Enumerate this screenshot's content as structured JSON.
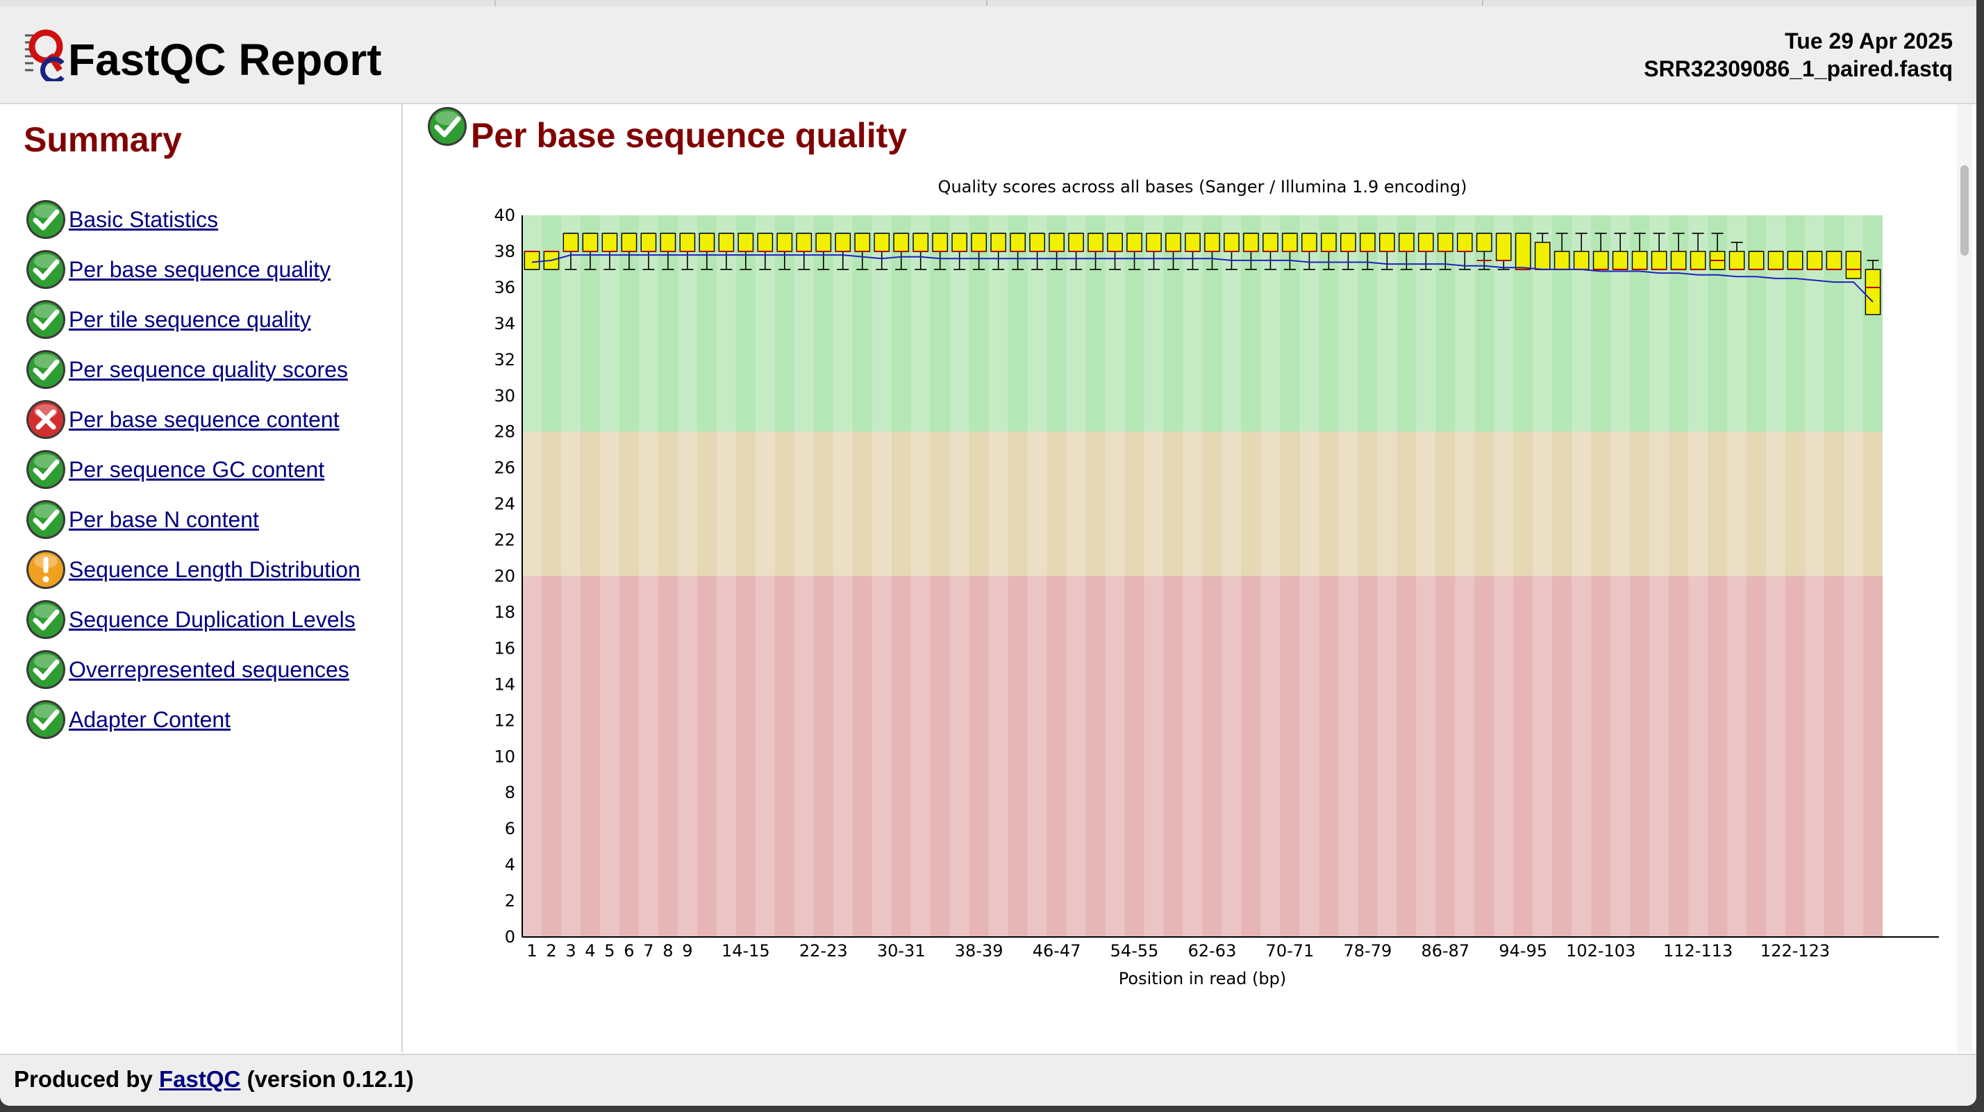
{
  "header": {
    "title": "FastQC Report",
    "date": "Tue 29 Apr 2025",
    "filename": "SRR32309086_1_paired.fastq"
  },
  "summary": {
    "title": "Summary",
    "modules": [
      {
        "label": "Basic Statistics",
        "status": "pass"
      },
      {
        "label": "Per base sequence quality",
        "status": "pass"
      },
      {
        "label": "Per tile sequence quality",
        "status": "pass"
      },
      {
        "label": "Per sequence quality scores",
        "status": "pass"
      },
      {
        "label": "Per base sequence content",
        "status": "fail"
      },
      {
        "label": "Per sequence GC content",
        "status": "pass"
      },
      {
        "label": "Per base N content",
        "status": "pass"
      },
      {
        "label": "Sequence Length Distribution",
        "status": "warn"
      },
      {
        "label": "Sequence Duplication Levels",
        "status": "pass"
      },
      {
        "label": "Overrepresented sequences",
        "status": "pass"
      },
      {
        "label": "Adapter Content",
        "status": "pass"
      }
    ]
  },
  "section": {
    "title": "Per base sequence quality",
    "status": "pass"
  },
  "footer": {
    "prefix": "Produced by ",
    "link": "FastQC",
    "suffix": " (version 0.12.1)"
  },
  "colors": {
    "pass": "#2e9e32",
    "fail": "#d32f2f",
    "warn": "#f0a020",
    "heading": "#800000",
    "link": "#000080",
    "box": "#f0f000",
    "mean": "#2020c0",
    "zone_good": "#b5e6b5",
    "zone_warn": "#e6d7b5",
    "zone_bad": "#e6b5b5"
  },
  "chart_data": {
    "type": "box",
    "title": "Quality scores across all bases (Sanger / Illumina 1.9 encoding)",
    "xlabel": "Position in read (bp)",
    "ylim": [
      0,
      40
    ],
    "yticks": [
      0,
      2,
      4,
      6,
      8,
      10,
      12,
      14,
      16,
      18,
      20,
      22,
      24,
      26,
      28,
      30,
      32,
      34,
      36,
      38,
      40
    ],
    "zones": [
      {
        "name": "good",
        "from": 28,
        "to": 40
      },
      {
        "name": "warn",
        "from": 20,
        "to": 28
      },
      {
        "name": "bad",
        "from": 0,
        "to": 20
      }
    ],
    "categories": [
      "1",
      "2",
      "3",
      "4",
      "5",
      "6",
      "7",
      "8",
      "9",
      "10-11",
      "12-13",
      "14-15",
      "16-17",
      "18-19",
      "20-21",
      "22-23",
      "24-25",
      "26-27",
      "28-29",
      "30-31",
      "32-33",
      "34-35",
      "36-37",
      "38-39",
      "40-41",
      "42-43",
      "44-45",
      "46-47",
      "48-49",
      "50-51",
      "52-53",
      "54-55",
      "56-57",
      "58-59",
      "60-61",
      "62-63",
      "64-65",
      "66-67",
      "68-69",
      "70-71",
      "72-73",
      "74-75",
      "76-77",
      "78-79",
      "80-81",
      "82-83",
      "84-85",
      "86-87",
      "88-89",
      "90-91",
      "92-93",
      "94-95",
      "96-97",
      "98-99",
      "100-101",
      "102-103",
      "104-105",
      "106-107",
      "108-109",
      "110-111",
      "112-113",
      "114-115",
      "116-117",
      "118-119",
      "120-121",
      "122-123",
      "124-125",
      "126-127",
      "128-129",
      "130-131"
    ],
    "xtick_labels": [
      "1",
      "2",
      "3",
      "4",
      "5",
      "6",
      "7",
      "8",
      "9",
      "14-15",
      "22-23",
      "30-31",
      "38-39",
      "46-47",
      "54-55",
      "62-63",
      "70-71",
      "78-79",
      "86-87",
      "94-95",
      "102-103",
      "112-113",
      "122-123"
    ],
    "series": {
      "upper_quartile": [
        38,
        38,
        39,
        39,
        39,
        39,
        39,
        39,
        39,
        39,
        39,
        39,
        39,
        39,
        39,
        39,
        39,
        39,
        39,
        39,
        39,
        39,
        39,
        39,
        39,
        39,
        39,
        39,
        39,
        39,
        39,
        39,
        39,
        39,
        39,
        39,
        39,
        39,
        39,
        39,
        39,
        39,
        39,
        39,
        39,
        39,
        39,
        39,
        39,
        39,
        39,
        39,
        38.5,
        38,
        38,
        38,
        38,
        38,
        38,
        38,
        38,
        38,
        38,
        38,
        38,
        38,
        38,
        38,
        38,
        37
      ],
      "median": [
        38,
        38,
        38,
        38,
        38,
        38,
        38,
        38,
        38,
        38,
        38,
        38,
        38,
        38,
        38,
        38,
        38,
        38,
        38,
        38,
        38,
        38,
        38,
        38,
        38,
        38,
        38,
        38,
        38,
        38,
        38,
        38,
        38,
        38,
        38,
        38,
        38,
        38,
        38,
        38,
        38,
        38,
        38,
        38,
        38,
        38,
        38,
        38,
        38,
        37.5,
        37.5,
        37,
        37,
        37,
        37,
        37,
        37,
        37,
        37,
        37,
        37,
        37.5,
        37,
        37,
        37,
        37,
        37,
        37,
        37,
        36
      ],
      "lower_quartile": [
        37,
        37,
        38,
        38,
        38,
        38,
        38,
        38,
        38,
        38,
        38,
        38,
        38,
        38,
        38,
        38,
        38,
        38,
        38,
        38,
        38,
        38,
        38,
        38,
        38,
        38,
        38,
        38,
        38,
        38,
        38,
        38,
        38,
        38,
        38,
        38,
        38,
        38,
        38,
        38,
        38,
        38,
        38,
        38,
        38,
        38,
        38,
        38,
        38,
        38,
        37.5,
        37,
        37,
        37,
        37,
        37,
        37,
        37,
        37,
        37,
        37,
        37,
        37,
        37,
        37,
        37,
        37,
        37,
        36.5,
        34.5
      ],
      "whisker_high": [
        38,
        38,
        39,
        39,
        39,
        39,
        39,
        39,
        39,
        39,
        39,
        39,
        39,
        39,
        39,
        39,
        39,
        39,
        39,
        39,
        39,
        39,
        39,
        39,
        39,
        39,
        39,
        39,
        39,
        39,
        39,
        39,
        39,
        39,
        39,
        39,
        39,
        39,
        39,
        39,
        39,
        39,
        39,
        39,
        39,
        39,
        39,
        39,
        39,
        39,
        39,
        39,
        39,
        39,
        39,
        39,
        39,
        39,
        39,
        39,
        39,
        39,
        38.5,
        38,
        38,
        38,
        38,
        38,
        38,
        37.5
      ],
      "whisker_low": [
        37,
        37,
        37,
        37,
        37,
        37,
        37,
        37,
        37,
        37,
        37,
        37,
        37,
        37,
        37,
        37,
        37,
        37,
        37,
        37,
        37,
        37,
        37,
        37,
        37,
        37,
        37,
        37,
        37,
        37,
        37,
        37,
        37,
        37,
        37,
        37,
        37,
        37,
        37,
        37,
        37,
        37,
        37,
        37,
        37,
        37,
        37,
        37,
        37,
        37,
        37,
        37,
        37,
        37,
        37,
        37,
        37,
        37,
        37,
        37,
        37,
        37,
        37,
        37,
        37,
        37,
        37,
        37,
        37,
        37
      ],
      "mean": [
        37.4,
        37.5,
        37.8,
        37.8,
        37.8,
        37.8,
        37.8,
        37.8,
        37.8,
        37.8,
        37.8,
        37.8,
        37.8,
        37.8,
        37.8,
        37.8,
        37.8,
        37.7,
        37.6,
        37.7,
        37.7,
        37.6,
        37.6,
        37.6,
        37.6,
        37.6,
        37.6,
        37.6,
        37.6,
        37.6,
        37.6,
        37.6,
        37.6,
        37.6,
        37.6,
        37.6,
        37.5,
        37.5,
        37.5,
        37.5,
        37.4,
        37.4,
        37.4,
        37.4,
        37.3,
        37.3,
        37.3,
        37.3,
        37.2,
        37.2,
        37.1,
        37.1,
        37.0,
        37.0,
        37.0,
        36.9,
        36.9,
        36.9,
        36.8,
        36.8,
        36.7,
        36.7,
        36.6,
        36.6,
        36.5,
        36.5,
        36.4,
        36.3,
        36.3,
        35.2
      ]
    }
  }
}
